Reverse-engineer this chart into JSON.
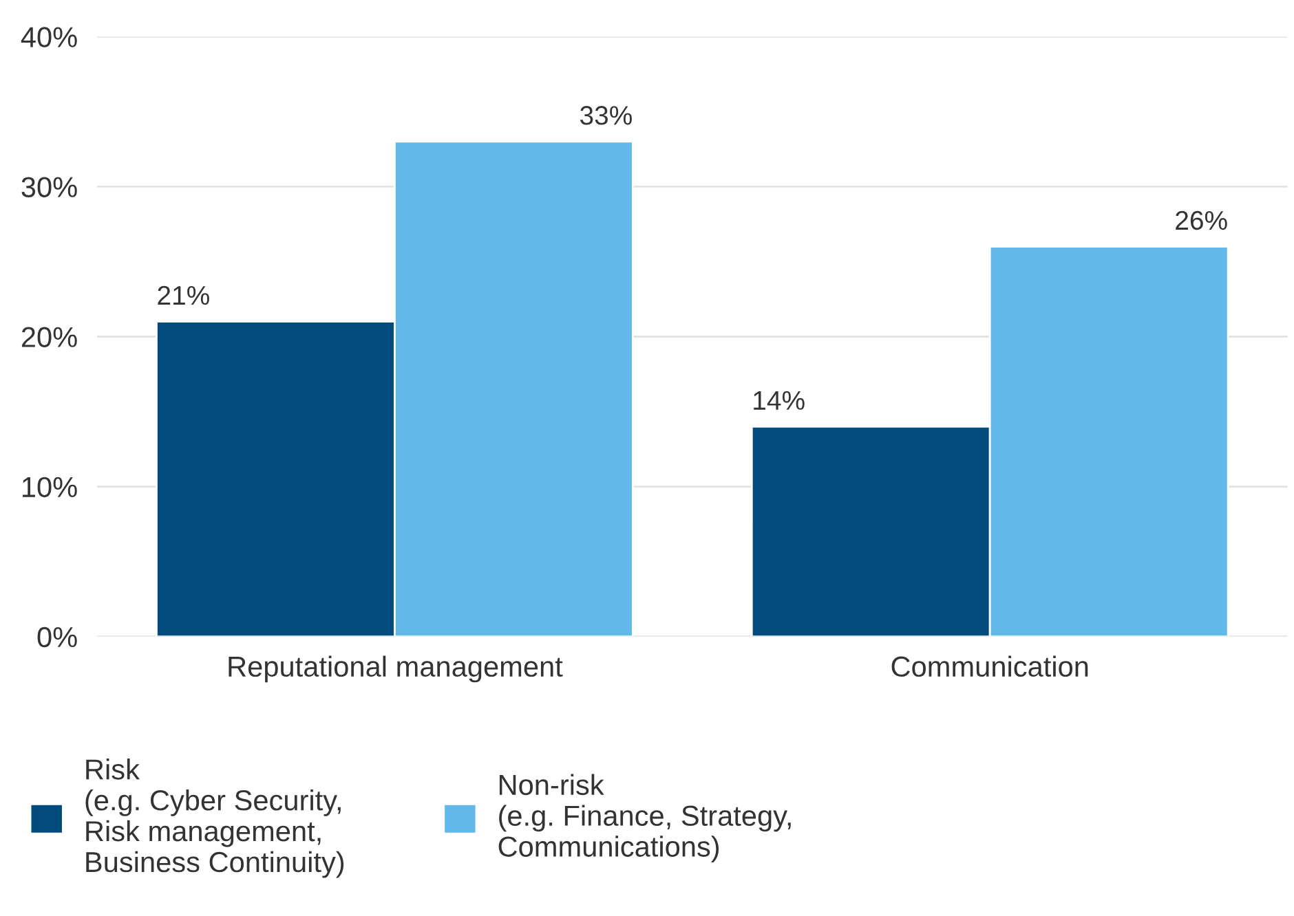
{
  "chart_data": {
    "type": "bar",
    "categories": [
      "Reputational management",
      "Communication"
    ],
    "series": [
      {
        "name": "Risk\n(e.g. Cyber Security,\nRisk management,\nBusiness Continuity)",
        "color": "#014b7d",
        "values": [
          21,
          14
        ],
        "value_labels": [
          "21%",
          "14%"
        ]
      },
      {
        "name": "Non-risk\n(e.g. Finance, Strategy,\nCommunications)",
        "color": "#62b8e8",
        "values": [
          33,
          26
        ],
        "value_labels": [
          "33%",
          "26%"
        ]
      }
    ],
    "ylim": [
      0,
      40
    ],
    "yticks": [
      {
        "value": 0,
        "label": "0%"
      },
      {
        "value": 10,
        "label": "10%"
      },
      {
        "value": 20,
        "label": "20%"
      },
      {
        "value": 30,
        "label": "30%"
      },
      {
        "value": 40,
        "label": "40%"
      }
    ],
    "grid": "y",
    "legend": "bottom"
  }
}
